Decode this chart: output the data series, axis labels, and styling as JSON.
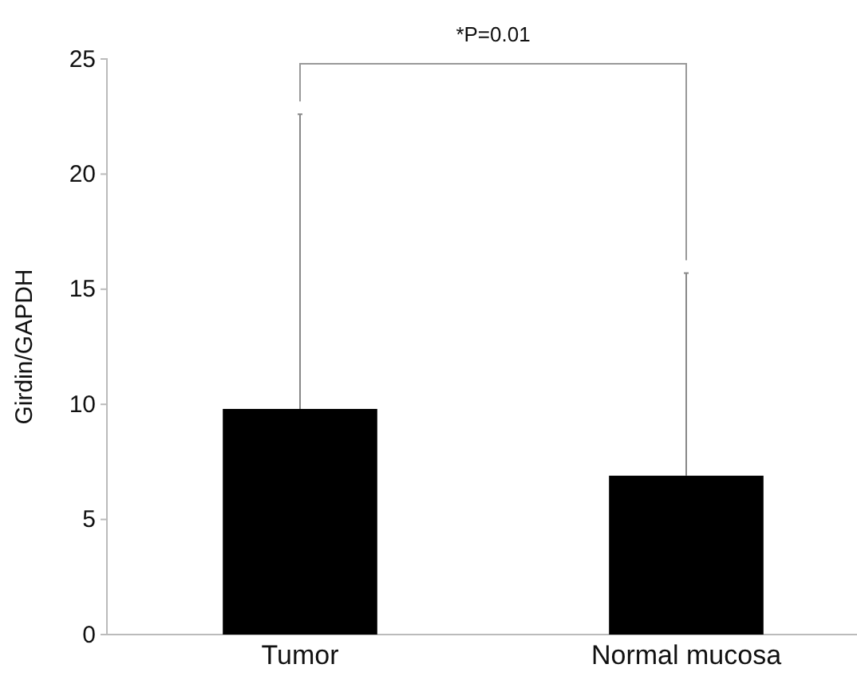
{
  "chart_data": {
    "type": "bar",
    "ylabel": "Girdin/GAPDH",
    "categories": [
      "Tumor",
      "Normal mucosa"
    ],
    "values": [
      9.8,
      6.9
    ],
    "errors": [
      [
        9.8,
        22.6
      ],
      [
        6.9,
        15.7
      ]
    ],
    "color": "#000000",
    "ylim": [
      0,
      25
    ],
    "yticks": [
      0,
      5,
      10,
      15,
      20,
      25
    ],
    "annotations": [
      "*P=0.01"
    ]
  }
}
